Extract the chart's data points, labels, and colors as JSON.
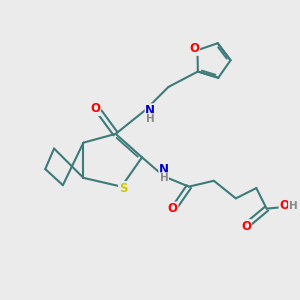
{
  "bg_color": "#ebebeb",
  "bond_color": "#3d7a7a",
  "bond_width": 1.5,
  "atom_colors": {
    "O": "#ff0000",
    "N": "#0000cc",
    "S": "#cccc00",
    "H": "#888888"
  },
  "font_size": 8.5
}
